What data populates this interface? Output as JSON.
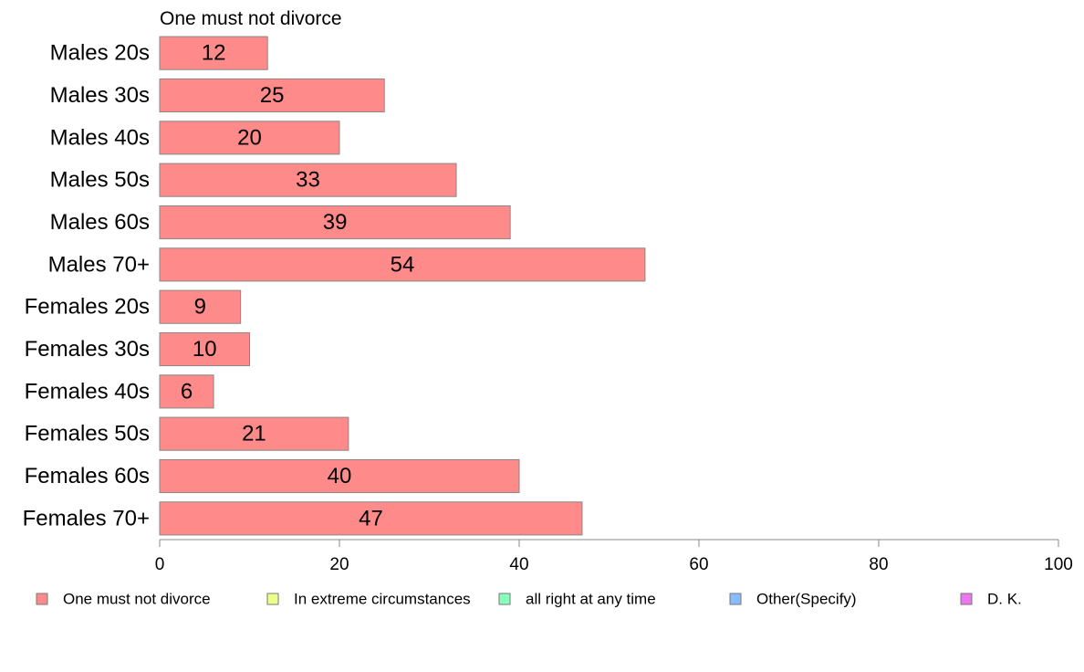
{
  "chart_data": {
    "type": "bar",
    "orientation": "horizontal",
    "title": "One must not divorce",
    "categories": [
      "Males 20s",
      "Males 30s",
      "Males 40s",
      "Males 50s",
      "Males 60s",
      "Males 70+",
      "Females 20s",
      "Females 30s",
      "Females 40s",
      "Females 50s",
      "Females 60s",
      "Females 70+"
    ],
    "series": [
      {
        "name": "One must not divorce",
        "color": "#ff8a8a",
        "values": [
          12,
          25,
          20,
          33,
          39,
          54,
          9,
          10,
          6,
          21,
          40,
          47
        ]
      }
    ],
    "xlim": [
      0,
      100
    ],
    "xticks": [
      0,
      20,
      40,
      60,
      80,
      100
    ],
    "grid": false,
    "legend": {
      "placement": "bottom",
      "entries": [
        {
          "label": "One must not divorce",
          "color": "#ff8a8a"
        },
        {
          "label": "In extreme circumstances",
          "color": "#eeff88"
        },
        {
          "label": "all right at any time",
          "color": "#88ffbb"
        },
        {
          "label": "Other(Specify)",
          "color": "#88bbff"
        },
        {
          "label": "D. K.",
          "color": "#ee77ee"
        }
      ]
    }
  }
}
